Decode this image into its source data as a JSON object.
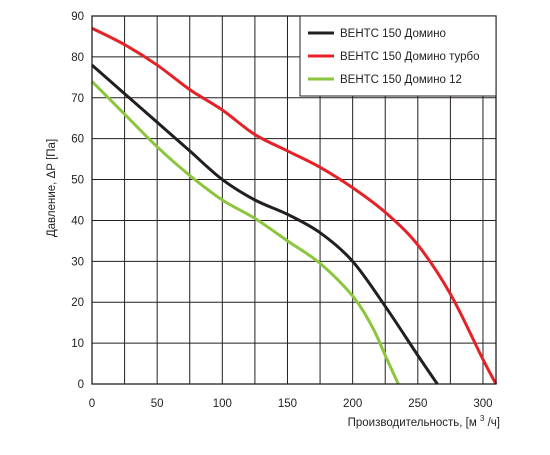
{
  "chart_data": {
    "type": "line",
    "xlabel": "Производительность, [м³/ч]",
    "xlabel_parts": {
      "main": "Производительность, [м",
      "superscript": "3",
      "tail": "/ч]"
    },
    "ylabel": "Давление, ΔР [Па]",
    "xlim": [
      0,
      310
    ],
    "ylim": [
      0,
      90
    ],
    "x_ticks": [
      0,
      50,
      100,
      150,
      200,
      250,
      300
    ],
    "y_ticks": [
      0,
      10,
      20,
      30,
      40,
      50,
      60,
      70,
      80,
      90
    ],
    "grid": true,
    "grid_x_step": 25,
    "grid_y_step": 10,
    "legend_position": "top-right",
    "series": [
      {
        "name": "ВЕНТС 150 Домино",
        "color": "#231f20",
        "x": [
          0,
          25,
          50,
          75,
          100,
          125,
          150,
          175,
          200,
          225,
          250,
          265
        ],
        "y": [
          78,
          71,
          64,
          57,
          50,
          45,
          41.5,
          37,
          30,
          19,
          7,
          0
        ]
      },
      {
        "name": "ВЕНТС 150 Домино турбо",
        "color": "#e42227",
        "x": [
          0,
          25,
          50,
          75,
          100,
          125,
          150,
          175,
          200,
          225,
          250,
          275,
          300,
          310
        ],
        "y": [
          87,
          83,
          78,
          72,
          67,
          61,
          57,
          53,
          48,
          42,
          34,
          22,
          6,
          0
        ]
      },
      {
        "name": "ВЕНТС 150 Домино 12",
        "color": "#8cc63f",
        "x": [
          0,
          25,
          50,
          75,
          100,
          125,
          150,
          175,
          200,
          215,
          225,
          235
        ],
        "y": [
          74,
          66,
          58,
          51,
          45,
          40.5,
          35,
          29.5,
          21.5,
          14,
          7,
          0
        ]
      }
    ]
  }
}
